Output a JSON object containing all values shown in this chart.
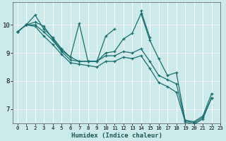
{
  "xlabel": "Humidex (Indice chaleur)",
  "xlim": [
    -0.5,
    23
  ],
  "ylim": [
    6.5,
    10.8
  ],
  "xticks": [
    0,
    1,
    2,
    3,
    4,
    5,
    6,
    7,
    8,
    9,
    10,
    11,
    12,
    13,
    14,
    15,
    16,
    17,
    18,
    19,
    20,
    21,
    22,
    23
  ],
  "yticks": [
    7,
    8,
    9,
    10
  ],
  "bg_color": "#cceaea",
  "line_color": "#1a6e6e",
  "grid_color": "#b0d8d8",
  "lines": [
    [
      9.75,
      10.0,
      10.35,
      9.85,
      9.55,
      9.15,
      8.85,
      10.05,
      8.7,
      8.7,
      9.6,
      9.85,
      null,
      null,
      10.5,
      9.55,
      null,
      null,
      null,
      null,
      null,
      null,
      null,
      null
    ],
    [
      9.75,
      10.0,
      10.1,
      9.95,
      9.5,
      9.1,
      8.85,
      8.7,
      8.7,
      8.7,
      9.0,
      9.05,
      9.5,
      9.7,
      10.4,
      9.45,
      8.8,
      8.2,
      8.3,
      6.6,
      6.55,
      6.75,
      7.55,
      null
    ],
    [
      9.75,
      10.0,
      10.0,
      9.75,
      9.45,
      9.05,
      8.75,
      8.7,
      8.7,
      8.7,
      8.9,
      8.9,
      9.05,
      9.0,
      9.15,
      8.7,
      8.2,
      8.05,
      7.9,
      6.6,
      6.5,
      6.7,
      7.4,
      null
    ],
    [
      9.75,
      10.0,
      9.95,
      9.6,
      9.3,
      8.95,
      8.65,
      8.6,
      8.55,
      8.5,
      8.7,
      8.7,
      8.85,
      8.8,
      8.9,
      8.45,
      7.95,
      7.8,
      7.6,
      6.55,
      6.45,
      6.65,
      7.4,
      null
    ]
  ]
}
